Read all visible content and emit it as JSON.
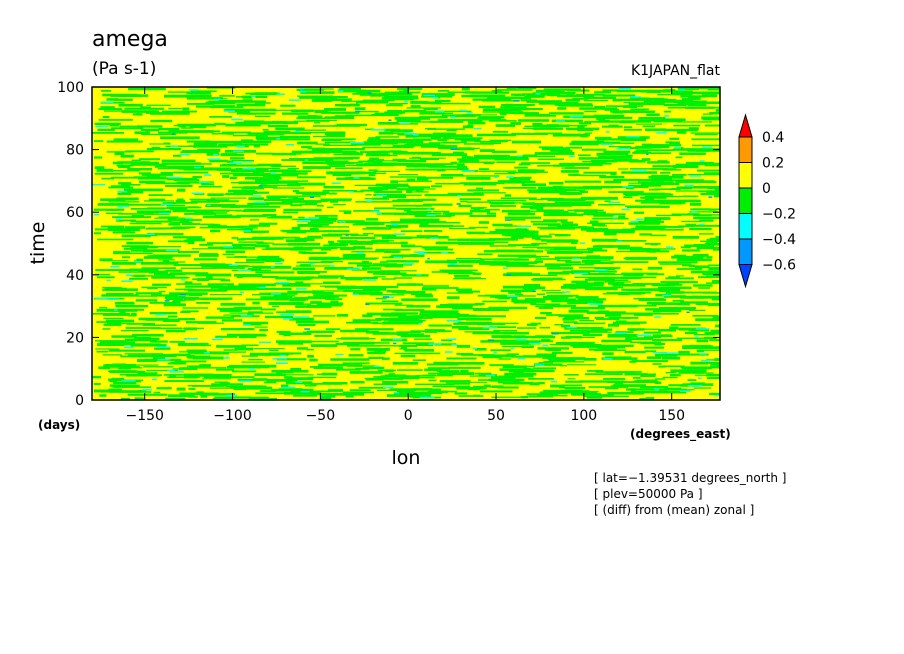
{
  "chart_data": {
    "type": "heatmap",
    "title": "amega",
    "subtitle": "(Pa s-1)",
    "dataset_label": "K1JAPAN_flat",
    "xlabel": "lon",
    "ylabel": "time",
    "x_unit": "(degrees_east)",
    "y_unit": "(days)",
    "xlim": [
      -180,
      177.5
    ],
    "ylim": [
      0,
      100
    ],
    "x_ticks": [
      -150,
      -100,
      -50,
      0,
      50,
      100,
      150
    ],
    "y_ticks": [
      0,
      20,
      40,
      60,
      80,
      100
    ],
    "x_tick_labels": [
      "−150",
      "−100",
      "−50",
      "0",
      "50",
      "100",
      "150"
    ],
    "y_tick_labels": [
      "0",
      "20",
      "40",
      "60",
      "80",
      "100"
    ],
    "colorbar": {
      "levels": [
        0.4,
        0.2,
        0,
        -0.2,
        -0.4,
        -0.6
      ],
      "labels": [
        "0.4",
        "0.2",
        "0",
        "−0.2",
        "−0.4",
        "−0.6"
      ],
      "colors": [
        "#ff0000",
        "#ff9900",
        "#ffff00",
        "#00ee00",
        "#00ffff",
        "#0099ff",
        "#0044ff"
      ],
      "extend": "both"
    },
    "annotations": [
      "[ lat=−1.39531 degrees_north ]",
      "[ plev=50000 Pa ]",
      "[ (diff) from (mean) zonal ]"
    ],
    "field_description": "Noisy zonal-anomaly field dominated by values 0 to 0.2 (yellow) and -0.2 to 0 (green), with scattered -0.4 to -0.2 (cyan) patches and isolated -0.6 to -0.4 (blue) spots."
  }
}
